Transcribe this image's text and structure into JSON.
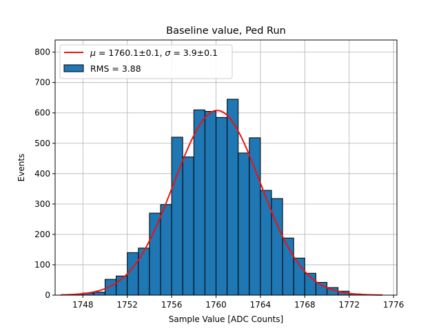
{
  "chart_data": {
    "type": "bar",
    "title": "Baseline value, Ped Run",
    "xlabel": "Sample Value [ADC Counts]",
    "ylabel": "Events",
    "xlim": [
      1745.5,
      1776.3
    ],
    "ylim": [
      0,
      840
    ],
    "grid": true,
    "legend_position": "top-left",
    "colors": {
      "bar_fill": "#1f77b4",
      "bar_edge": "#000000",
      "fit": "#ee1111",
      "grid": "#b0b0b0"
    },
    "xticks": [
      1748,
      1752,
      1756,
      1760,
      1764,
      1768,
      1772,
      1776
    ],
    "yticks": [
      0,
      100,
      200,
      300,
      400,
      500,
      600,
      700,
      800
    ],
    "bin_width": 1,
    "bins": [
      {
        "x": 1747.5,
        "count": 3
      },
      {
        "x": 1748.5,
        "count": 7
      },
      {
        "x": 1749.5,
        "count": 10
      },
      {
        "x": 1750.5,
        "count": 52
      },
      {
        "x": 1751.5,
        "count": 63
      },
      {
        "x": 1752.5,
        "count": 140
      },
      {
        "x": 1753.5,
        "count": 155
      },
      {
        "x": 1754.5,
        "count": 270
      },
      {
        "x": 1755.5,
        "count": 298
      },
      {
        "x": 1756.5,
        "count": 520
      },
      {
        "x": 1757.5,
        "count": 455
      },
      {
        "x": 1758.5,
        "count": 610
      },
      {
        "x": 1759.5,
        "count": 605
      },
      {
        "x": 1760.5,
        "count": 585
      },
      {
        "x": 1761.5,
        "count": 645
      },
      {
        "x": 1762.5,
        "count": 468
      },
      {
        "x": 1763.5,
        "count": 518
      },
      {
        "x": 1764.5,
        "count": 345
      },
      {
        "x": 1765.5,
        "count": 318
      },
      {
        "x": 1766.5,
        "count": 188
      },
      {
        "x": 1767.5,
        "count": 122
      },
      {
        "x": 1768.5,
        "count": 72
      },
      {
        "x": 1769.5,
        "count": 42
      },
      {
        "x": 1770.5,
        "count": 25
      },
      {
        "x": 1771.5,
        "count": 13
      },
      {
        "x": 1772.5,
        "count": 4
      }
    ],
    "fit": {
      "type": "gaussian",
      "mu": 1760.1,
      "sigma": 3.9,
      "amplitude": 608,
      "x_range": [
        1746,
        1775
      ]
    },
    "legend": [
      {
        "kind": "line",
        "label_math": "μ",
        "label_rest": " = 1760.1±0.1, ",
        "label_math2": "σ",
        "label_rest2": " = 3.9±0.1"
      },
      {
        "kind": "patch",
        "label": "RMS = 3.88"
      }
    ]
  }
}
